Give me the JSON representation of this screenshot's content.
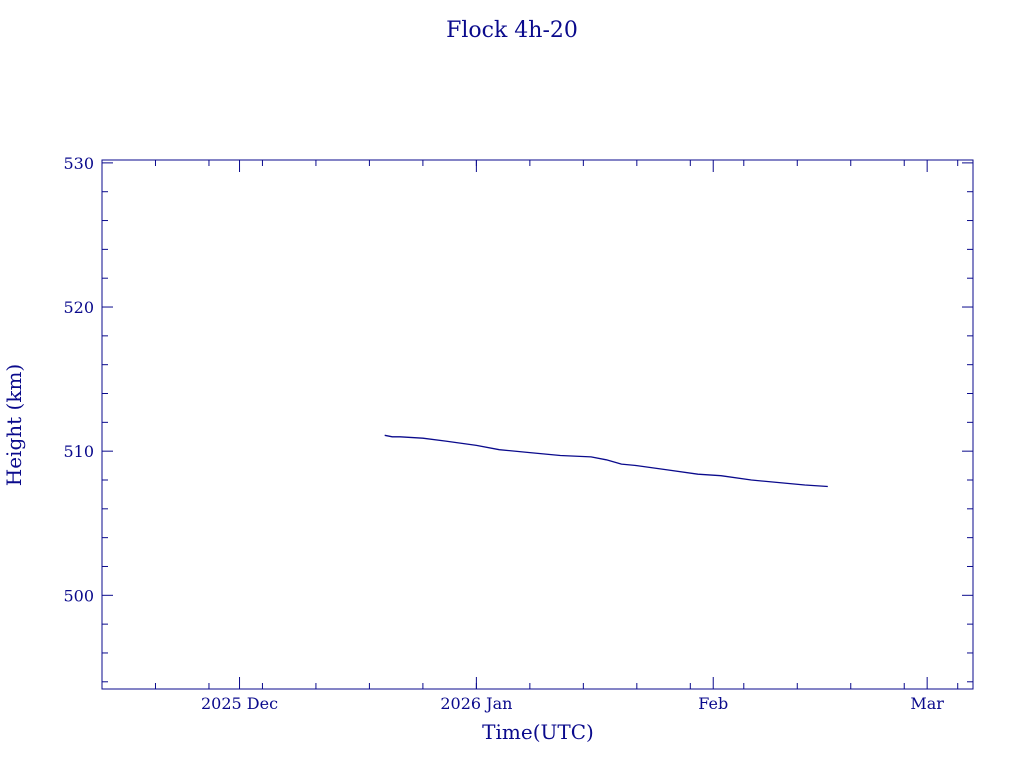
{
  "chart_data": {
    "type": "line",
    "title": "Flock 4h-20",
    "xlabel": "Time(UTC)",
    "ylabel": "Height (km)",
    "ylim": [
      493.5,
      530.2
    ],
    "yticks": [
      500,
      510,
      520,
      530
    ],
    "xlim": [
      "2025-11-13",
      "2026-03-07"
    ],
    "xticks": [
      {
        "date": "2025-12-01",
        "label": "2025 Dec"
      },
      {
        "date": "2026-01-01",
        "label": "2026 Jan"
      },
      {
        "date": "2026-02-01",
        "label": "Feb"
      },
      {
        "date": "2026-03-01",
        "label": "Mar"
      }
    ],
    "grid": false,
    "colors": {
      "axis": "#0a0a8c",
      "line": "#0a0a8c"
    },
    "series": [
      {
        "x": [
          "2025-12-20",
          "2025-12-21",
          "2025-12-22",
          "2025-12-25",
          "2025-12-28",
          "2026-01-01",
          "2026-01-04",
          "2026-01-08",
          "2026-01-12",
          "2026-01-16",
          "2026-01-18",
          "2026-01-20",
          "2026-01-22",
          "2026-01-26",
          "2026-01-30",
          "2026-02-02",
          "2026-02-06",
          "2026-02-10",
          "2026-02-13",
          "2026-02-16"
        ],
        "y": [
          511.1,
          511.0,
          511.0,
          510.9,
          510.7,
          510.4,
          510.1,
          509.9,
          509.7,
          509.6,
          509.4,
          509.1,
          509.0,
          508.7,
          508.4,
          508.3,
          508.0,
          507.8,
          507.65,
          507.55
        ]
      }
    ]
  }
}
